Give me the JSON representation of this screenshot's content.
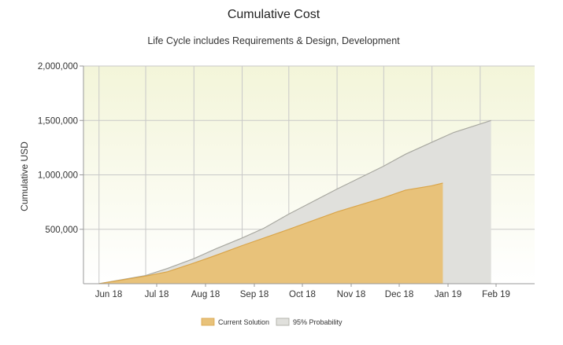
{
  "chart_data": {
    "type": "area",
    "title": "Cumulative Cost",
    "subtitle": "Life Cycle includes Requirements & Design, Development",
    "ylabel": "Cumulative USD",
    "xlabel": "",
    "x_ticks": [
      "Jun 18",
      "Jul 18",
      "Aug 18",
      "Sep 18",
      "Oct 18",
      "Nov 18",
      "Dec 18",
      "Jan 19",
      "Feb 19"
    ],
    "y_ticks": [
      "500,000",
      "1,000,000",
      "1,500,000",
      "2,000,000"
    ],
    "ylim": [
      0,
      2000000
    ],
    "xlim": [
      "2018-05-22",
      "2019-03-08"
    ],
    "grid": true,
    "legend_position": "bottom-center",
    "series": [
      {
        "name": "95% Probability",
        "color": "#e0e0dc",
        "stroke": "#a8a8a0",
        "points": [
          {
            "x": "2018-06-01",
            "y": 0
          },
          {
            "x": "2018-07-01",
            "y": 75000
          },
          {
            "x": "2018-07-15",
            "y": 140000
          },
          {
            "x": "2018-08-01",
            "y": 230000
          },
          {
            "x": "2018-08-15",
            "y": 320000
          },
          {
            "x": "2018-09-01",
            "y": 420000
          },
          {
            "x": "2018-09-15",
            "y": 510000
          },
          {
            "x": "2018-10-01",
            "y": 640000
          },
          {
            "x": "2018-11-01",
            "y": 870000
          },
          {
            "x": "2018-12-01",
            "y": 1080000
          },
          {
            "x": "2018-12-15",
            "y": 1190000
          },
          {
            "x": "2019-01-01",
            "y": 1300000
          },
          {
            "x": "2019-01-15",
            "y": 1390000
          },
          {
            "x": "2019-02-08",
            "y": 1500000
          }
        ]
      },
      {
        "name": "Current Solution",
        "color": "#e8c27a",
        "stroke": "#d9a54a",
        "points": [
          {
            "x": "2018-06-01",
            "y": 0
          },
          {
            "x": "2018-07-01",
            "y": 70000
          },
          {
            "x": "2018-07-15",
            "y": 110000
          },
          {
            "x": "2018-08-01",
            "y": 190000
          },
          {
            "x": "2018-08-15",
            "y": 260000
          },
          {
            "x": "2018-09-01",
            "y": 350000
          },
          {
            "x": "2018-10-01",
            "y": 500000
          },
          {
            "x": "2018-11-01",
            "y": 660000
          },
          {
            "x": "2018-12-01",
            "y": 790000
          },
          {
            "x": "2018-12-15",
            "y": 860000
          },
          {
            "x": "2019-01-01",
            "y": 900000
          },
          {
            "x": "2019-01-08",
            "y": 925000
          }
        ]
      }
    ],
    "background_color": "#f6f7e4"
  }
}
